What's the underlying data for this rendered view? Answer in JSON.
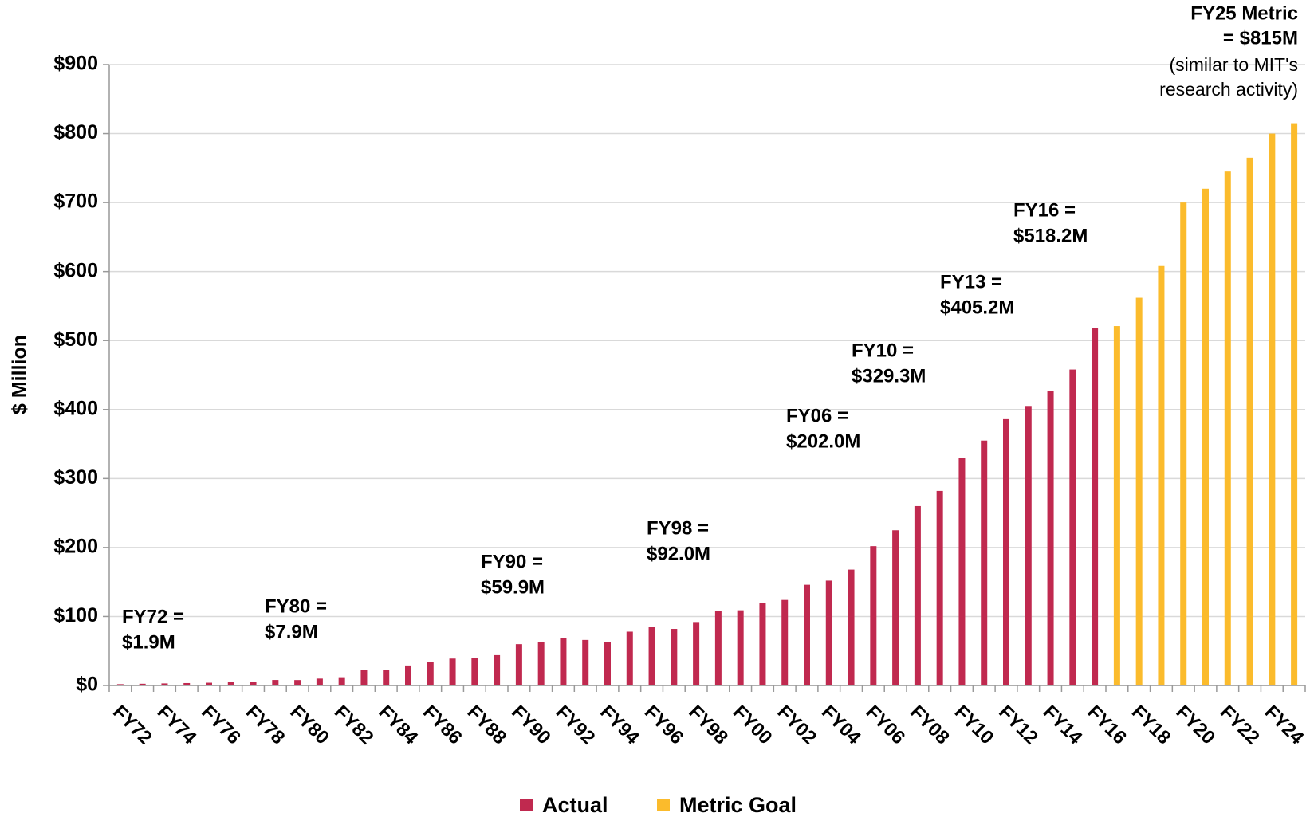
{
  "chart_data": {
    "type": "bar",
    "y_axis_label": "$ Million",
    "categories": [
      "FY72",
      null,
      "FY74",
      null,
      "FY76",
      null,
      "FY78",
      null,
      "FY80",
      null,
      "FY82",
      null,
      "FY84",
      null,
      "FY86",
      null,
      "FY88",
      null,
      "FY90",
      null,
      "FY92",
      null,
      "FY94",
      null,
      "FY96",
      null,
      "FY98",
      null,
      "FY00",
      null,
      "FY02",
      null,
      "FY04",
      null,
      "FY06",
      null,
      "FY08",
      null,
      "FY10",
      null,
      "FY12",
      null,
      "FY14",
      null,
      "FY16",
      null,
      "FY18",
      null,
      "FY20",
      null,
      "FY22",
      null,
      "FY24",
      null
    ],
    "series": [
      {
        "name": "Actual",
        "color": "#c0294f",
        "values": [
          1.9,
          2.5,
          3,
          3.5,
          4,
          5,
          5.5,
          8,
          7.9,
          10,
          12,
          23,
          22,
          29,
          34,
          39,
          40,
          44,
          59.9,
          63,
          69,
          66,
          63,
          78,
          85,
          82,
          92.0,
          108,
          109,
          119,
          124,
          146,
          152,
          168,
          202.0,
          225,
          260,
          282,
          329.3,
          355,
          386,
          405.2,
          427,
          458,
          518.2,
          null,
          null,
          null,
          null,
          null,
          null,
          null,
          null,
          null
        ]
      },
      {
        "name": "Metric Goal",
        "color": "#fbbb2c",
        "values": [
          null,
          null,
          null,
          null,
          null,
          null,
          null,
          null,
          null,
          null,
          null,
          null,
          null,
          null,
          null,
          null,
          null,
          null,
          null,
          null,
          null,
          null,
          null,
          null,
          null,
          null,
          null,
          null,
          null,
          null,
          null,
          null,
          null,
          null,
          null,
          null,
          null,
          null,
          null,
          null,
          null,
          null,
          null,
          null,
          null,
          521,
          562,
          608,
          700,
          720,
          745,
          765,
          800,
          815
        ]
      }
    ],
    "ylim": [
      0,
      900
    ],
    "yticks": [
      {
        "value": 0,
        "label": "$0"
      },
      {
        "value": 100,
        "label": "$100"
      },
      {
        "value": 200,
        "label": "$200"
      },
      {
        "value": 300,
        "label": "$300"
      },
      {
        "value": 400,
        "label": "$400"
      },
      {
        "value": 500,
        "label": "$500"
      },
      {
        "value": 600,
        "label": "$600"
      },
      {
        "value": 700,
        "label": "$700"
      },
      {
        "value": 800,
        "label": "$800"
      },
      {
        "value": 900,
        "label": "$900"
      }
    ],
    "grid": true,
    "legend": "bottom",
    "annotations": [
      [
        "FY72 =",
        "$1.9M"
      ],
      [
        "FY80 =",
        "$7.9M"
      ],
      [
        "FY90 =",
        "$59.9M"
      ],
      [
        "FY98 =",
        "$92.0M"
      ],
      [
        "FY06 =",
        "$202.0M"
      ],
      [
        "FY10 =",
        "$329.3M"
      ],
      [
        "FY13 =",
        "$405.2M"
      ],
      [
        "FY16 =",
        "$518.2M"
      ],
      [
        "FY25 Metric",
        "= $815M",
        "(similar to MIT's",
        "research activity)"
      ]
    ]
  }
}
